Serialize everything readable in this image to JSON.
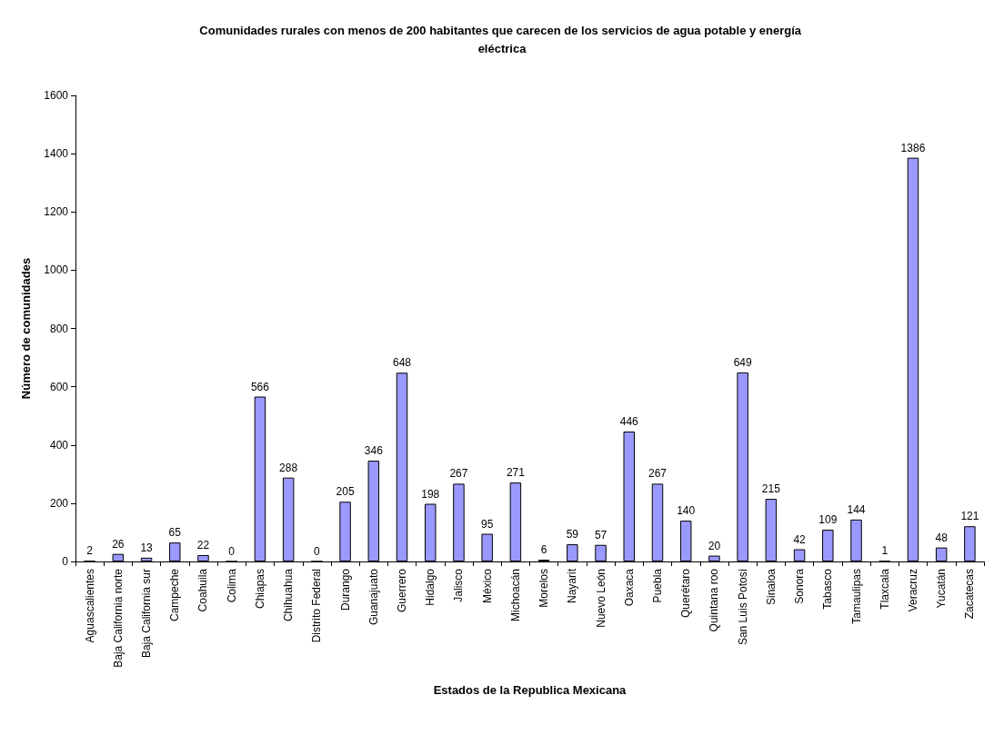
{
  "chart_data": {
    "type": "bar",
    "title": "Comunidades rurales con menos de 200 habitantes que carecen de los servicios de agua potable y energía eléctrica",
    "xlabel": "Estados de la Republica Mexicana",
    "ylabel": "Número de comunidades",
    "categories": [
      "Aguascalientes",
      "Baja California norte",
      "Baja California sur",
      "Campeche",
      "Coahuila",
      "Colima",
      "Chiapas",
      "Chihuahua",
      "Distrito Federal",
      "Durango",
      "Guanajuato",
      "Guerrero",
      "Hidalgo",
      "Jalisco",
      "México",
      "Michoacán",
      "Morelos",
      "Nayarit",
      "Nuevo León",
      "Oaxaca",
      "Puebla",
      "Querétaro",
      "Quintana roo",
      "San Luis Potosí",
      "Sinaloa",
      "Sonora",
      "Tabasco",
      "Tamaulipas",
      "Tlaxcala",
      "Veracruz",
      "Yucatán",
      "Zacatecas"
    ],
    "values": [
      2,
      26,
      13,
      65,
      22,
      0,
      566,
      288,
      0,
      205,
      346,
      648,
      198,
      267,
      95,
      271,
      6,
      59,
      57,
      446,
      267,
      140,
      20,
      649,
      215,
      42,
      109,
      144,
      1,
      1386,
      48,
      121
    ],
    "color": "#9999ff",
    "ylim": [
      0,
      1600
    ],
    "yticks": [
      0,
      200,
      400,
      600,
      800,
      1000,
      1200,
      1400,
      1600
    ],
    "grid": false,
    "data_labels": true
  }
}
